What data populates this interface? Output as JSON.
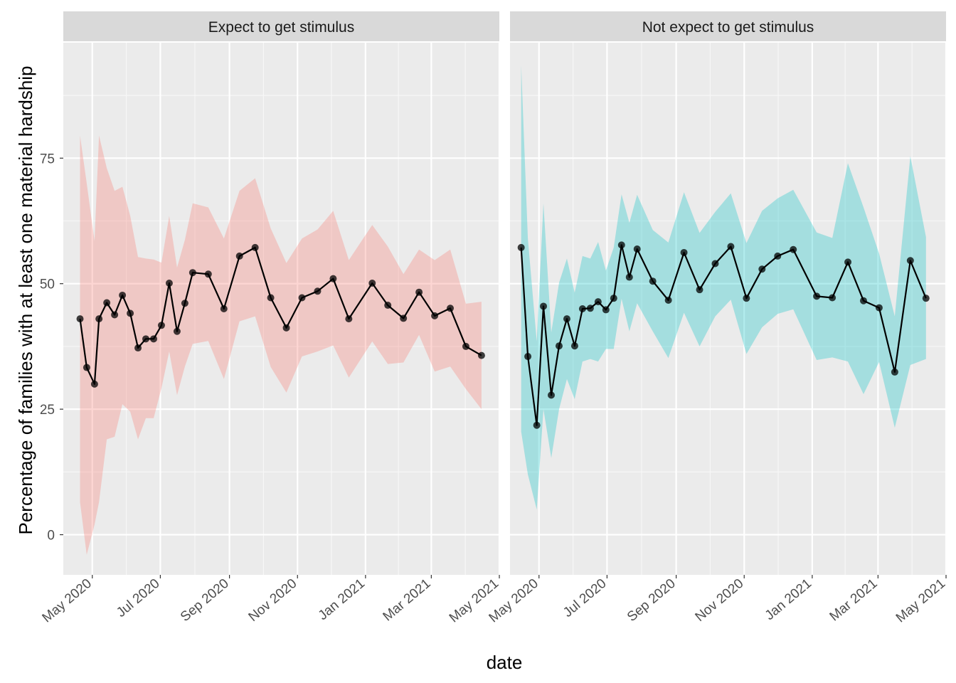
{
  "chart_data": {
    "type": "line",
    "xlabel": "date",
    "ylabel": "Percentage of families with at least one material hardship",
    "x_ticks": [
      "May 2020",
      "Jul 2020",
      "Sep 2020",
      "Nov 2020",
      "Jan 2021",
      "Mar 2021",
      "May 2021"
    ],
    "x_tick_dates": [
      "2020-05-01",
      "2020-07-01",
      "2020-09-01",
      "2020-11-01",
      "2021-01-01",
      "2021-03-01",
      "2021-05-01"
    ],
    "y_ticks": [
      0,
      25,
      50,
      75
    ],
    "ylim": [
      -8,
      98
    ],
    "xlim": [
      "2020-04-05",
      "2021-05-01"
    ],
    "grid": true,
    "legend": "none",
    "panels": [
      {
        "name": "Expect to get stimulus",
        "fill": "#F8766D",
        "points": [
          {
            "date": "2020-04-20",
            "y": 43.0,
            "lower": 6.5,
            "upper": 79.5
          },
          {
            "date": "2020-04-26",
            "y": 33.3,
            "lower": -4.0,
            "upper": 70.0
          },
          {
            "date": "2020-05-03",
            "y": 30.0,
            "lower": 2.0,
            "upper": 58.5
          },
          {
            "date": "2020-05-07",
            "y": 43.0,
            "lower": 6.5,
            "upper": 79.5
          },
          {
            "date": "2020-05-14",
            "y": 46.2,
            "lower": 19.0,
            "upper": 73.0
          },
          {
            "date": "2020-05-21",
            "y": 43.8,
            "lower": 19.5,
            "upper": 68.5
          },
          {
            "date": "2020-05-28",
            "y": 47.7,
            "lower": 26.0,
            "upper": 69.3
          },
          {
            "date": "2020-06-04",
            "y": 44.1,
            "lower": 24.5,
            "upper": 63.5
          },
          {
            "date": "2020-06-11",
            "y": 37.2,
            "lower": 19.0,
            "upper": 55.3
          },
          {
            "date": "2020-06-18",
            "y": 39.0,
            "lower": 23.2,
            "upper": 55.0
          },
          {
            "date": "2020-06-25",
            "y": 39.0,
            "lower": 23.2,
            "upper": 54.8
          },
          {
            "date": "2020-07-02",
            "y": 41.7,
            "lower": 29.2,
            "upper": 54.2
          },
          {
            "date": "2020-07-09",
            "y": 50.1,
            "lower": 36.5,
            "upper": 63.5
          },
          {
            "date": "2020-07-16",
            "y": 40.5,
            "lower": 27.8,
            "upper": 53.2
          },
          {
            "date": "2020-07-23",
            "y": 46.1,
            "lower": 33.5,
            "upper": 58.7
          },
          {
            "date": "2020-07-30",
            "y": 52.2,
            "lower": 38.0,
            "upper": 66.0
          },
          {
            "date": "2020-08-13",
            "y": 51.9,
            "lower": 38.6,
            "upper": 65.2
          },
          {
            "date": "2020-08-27",
            "y": 45.0,
            "lower": 31.0,
            "upper": 59.0
          },
          {
            "date": "2020-09-10",
            "y": 55.5,
            "lower": 42.5,
            "upper": 68.5
          },
          {
            "date": "2020-09-24",
            "y": 57.2,
            "lower": 43.5,
            "upper": 71.0
          },
          {
            "date": "2020-10-08",
            "y": 47.2,
            "lower": 33.4,
            "upper": 61.0
          },
          {
            "date": "2020-10-22",
            "y": 41.2,
            "lower": 28.3,
            "upper": 54.1
          },
          {
            "date": "2020-11-05",
            "y": 47.2,
            "lower": 35.5,
            "upper": 59.0
          },
          {
            "date": "2020-11-19",
            "y": 48.5,
            "lower": 36.5,
            "upper": 60.8
          },
          {
            "date": "2020-12-03",
            "y": 51.0,
            "lower": 37.7,
            "upper": 64.5
          },
          {
            "date": "2020-12-17",
            "y": 43.0,
            "lower": 31.3,
            "upper": 54.7
          },
          {
            "date": "2021-01-07",
            "y": 50.1,
            "lower": 38.5,
            "upper": 61.7
          },
          {
            "date": "2021-01-21",
            "y": 45.7,
            "lower": 34.0,
            "upper": 57.4
          },
          {
            "date": "2021-02-04",
            "y": 43.1,
            "lower": 34.3,
            "upper": 51.9
          },
          {
            "date": "2021-02-18",
            "y": 48.3,
            "lower": 39.8,
            "upper": 56.8
          },
          {
            "date": "2021-03-04",
            "y": 43.6,
            "lower": 32.5,
            "upper": 54.7
          },
          {
            "date": "2021-03-18",
            "y": 45.1,
            "lower": 33.5,
            "upper": 56.8
          },
          {
            "date": "2021-04-01",
            "y": 37.5,
            "lower": 29.0,
            "upper": 46.0
          },
          {
            "date": "2021-04-15",
            "y": 35.7,
            "lower": 25.0,
            "upper": 46.4
          }
        ]
      },
      {
        "name": "Not expect to get stimulus",
        "fill": "#00BFC4",
        "points": [
          {
            "date": "2020-04-15",
            "y": 57.2,
            "lower": 20.5,
            "upper": 93.5
          },
          {
            "date": "2020-04-21",
            "y": 35.5,
            "lower": 12.0,
            "upper": 59.0
          },
          {
            "date": "2020-04-29",
            "y": 21.8,
            "lower": 5.0,
            "upper": 38.5
          },
          {
            "date": "2020-05-05",
            "y": 45.5,
            "lower": 25.0,
            "upper": 66.0
          },
          {
            "date": "2020-05-12",
            "y": 27.8,
            "lower": 15.3,
            "upper": 40.3
          },
          {
            "date": "2020-05-19",
            "y": 37.6,
            "lower": 25.0,
            "upper": 50.2
          },
          {
            "date": "2020-05-26",
            "y": 43.0,
            "lower": 31.0,
            "upper": 55.0
          },
          {
            "date": "2020-06-02",
            "y": 37.6,
            "lower": 27.0,
            "upper": 48.2
          },
          {
            "date": "2020-06-09",
            "y": 45.0,
            "lower": 34.5,
            "upper": 55.5
          },
          {
            "date": "2020-06-16",
            "y": 45.1,
            "lower": 35.0,
            "upper": 55.0
          },
          {
            "date": "2020-06-23",
            "y": 46.4,
            "lower": 34.5,
            "upper": 58.3
          },
          {
            "date": "2020-06-30",
            "y": 44.8,
            "lower": 37.0,
            "upper": 52.6
          },
          {
            "date": "2020-07-07",
            "y": 47.1,
            "lower": 37.0,
            "upper": 57.2
          },
          {
            "date": "2020-07-14",
            "y": 57.7,
            "lower": 47.0,
            "upper": 67.8
          },
          {
            "date": "2020-07-21",
            "y": 51.3,
            "lower": 40.5,
            "upper": 62.1
          },
          {
            "date": "2020-07-28",
            "y": 56.9,
            "lower": 46.1,
            "upper": 67.7
          },
          {
            "date": "2020-08-11",
            "y": 50.5,
            "lower": 40.5,
            "upper": 60.7
          },
          {
            "date": "2020-08-25",
            "y": 46.7,
            "lower": 35.2,
            "upper": 58.2
          },
          {
            "date": "2020-09-08",
            "y": 56.2,
            "lower": 44.2,
            "upper": 68.2
          },
          {
            "date": "2020-09-22",
            "y": 48.8,
            "lower": 37.5,
            "upper": 60.1
          },
          {
            "date": "2020-10-06",
            "y": 54.0,
            "lower": 43.5,
            "upper": 64.3
          },
          {
            "date": "2020-10-20",
            "y": 57.4,
            "lower": 46.8,
            "upper": 68.0
          },
          {
            "date": "2020-11-03",
            "y": 47.1,
            "lower": 36.0,
            "upper": 58.1
          },
          {
            "date": "2020-11-17",
            "y": 52.9,
            "lower": 41.3,
            "upper": 64.5
          },
          {
            "date": "2020-12-01",
            "y": 55.5,
            "lower": 44.0,
            "upper": 67.0
          },
          {
            "date": "2020-12-15",
            "y": 56.8,
            "lower": 44.9,
            "upper": 68.7
          },
          {
            "date": "2021-01-05",
            "y": 47.5,
            "lower": 34.8,
            "upper": 60.2
          },
          {
            "date": "2021-01-19",
            "y": 47.2,
            "lower": 35.3,
            "upper": 59.1
          },
          {
            "date": "2021-02-02",
            "y": 54.3,
            "lower": 34.5,
            "upper": 74.0
          },
          {
            "date": "2021-02-16",
            "y": 46.6,
            "lower": 28.0,
            "upper": 65.2
          },
          {
            "date": "2021-03-02",
            "y": 45.2,
            "lower": 34.4,
            "upper": 56.0
          },
          {
            "date": "2021-03-16",
            "y": 32.4,
            "lower": 21.3,
            "upper": 43.5
          },
          {
            "date": "2021-03-30",
            "y": 54.6,
            "lower": 33.8,
            "upper": 75.4
          },
          {
            "date": "2021-04-13",
            "y": 47.1,
            "lower": 35.0,
            "upper": 59.3
          }
        ]
      }
    ]
  }
}
